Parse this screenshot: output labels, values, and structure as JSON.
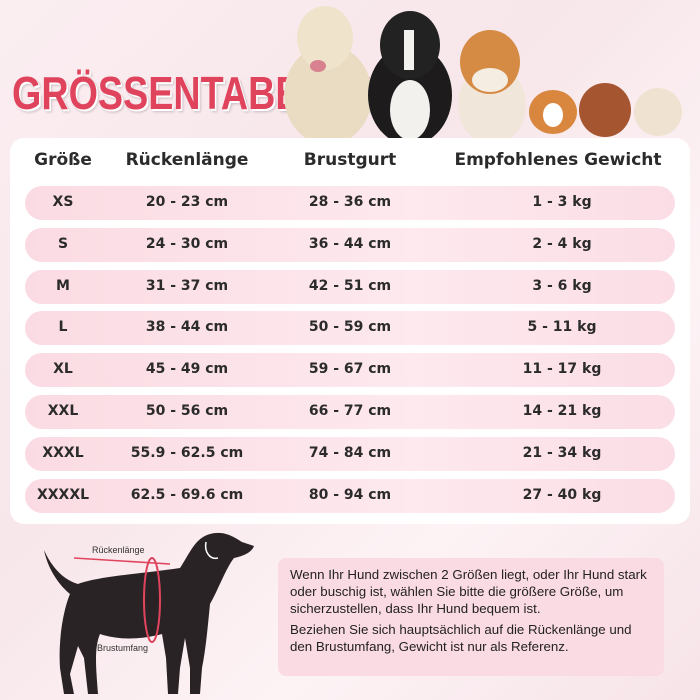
{
  "title": "GRÖSSENTABELLE",
  "colors": {
    "accent": "#e0445d",
    "row_bg": "#fbdbe3",
    "silhouette": "#2a2326"
  },
  "table": {
    "headers": [
      "Größe",
      "Rückenlänge",
      "Brustgurt",
      "Empfohlenes Gewicht"
    ],
    "rows": [
      [
        "XS",
        "20 - 23 cm",
        "28 - 36 cm",
        "1 - 3 kg"
      ],
      [
        "S",
        "24 - 30 cm",
        "36 - 44 cm",
        "2 - 4 kg"
      ],
      [
        "M",
        "31 - 37 cm",
        "42 - 51 cm",
        "3 - 6 kg"
      ],
      [
        "L",
        "38 - 44 cm",
        "50 - 59 cm",
        "5 - 11 kg"
      ],
      [
        "XL",
        "45 - 49 cm",
        "59 - 67 cm",
        "11 - 17 kg"
      ],
      [
        "XXL",
        "50 - 56 cm",
        "66 - 77 cm",
        "14 - 21 kg"
      ],
      [
        "XXXL",
        "55.9 - 62.5 cm",
        "74 - 84 cm",
        "21 - 34 kg"
      ],
      [
        "XXXXL",
        "62.5 - 69.6 cm",
        "80 - 94 cm",
        "27 - 40 kg"
      ]
    ]
  },
  "diagram": {
    "back_label": "Rückenlänge",
    "chest_label": "Brustumfang"
  },
  "note": {
    "p1": "Wenn Ihr Hund zwischen 2 Größen liegt, oder Ihr Hund stark oder buschig ist, wählen Sie bitte die größere Größe, um sicherzustellen, dass Ihr Hund bequem ist.",
    "p2": "Beziehen Sie sich hauptsächlich auf die Rückenlänge und den Brustumfang, Gewicht ist nur als Referenz."
  }
}
